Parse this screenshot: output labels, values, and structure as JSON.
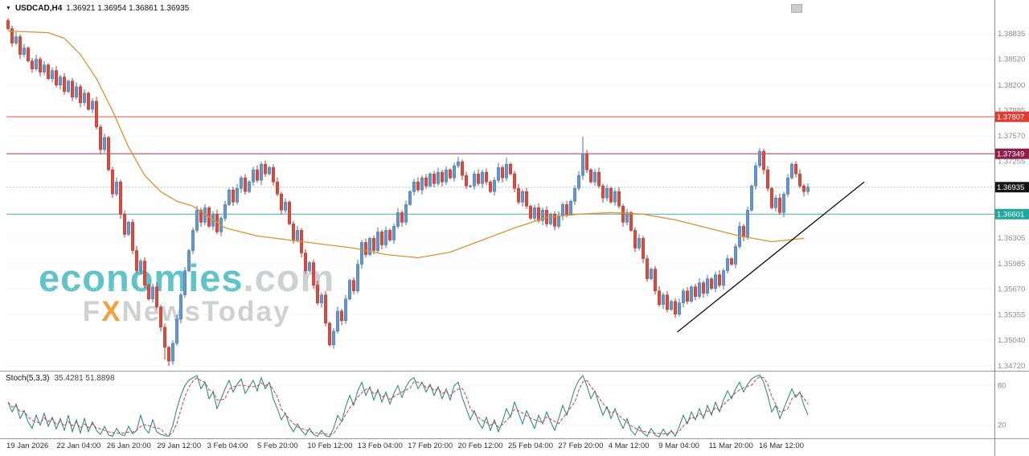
{
  "header": {
    "dropdown_icon": "▼",
    "symbol_period": "USDCAD,H4",
    "ohlc": "1.36921 1.36954 1.36861 1.36935"
  },
  "watermark": {
    "brand": "economies",
    "domain": ".com",
    "sub_pre": "F",
    "sub_x": "X",
    "sub_post": "NewsToday"
  },
  "indicator": {
    "label": "Stoch(5,3,3)",
    "values": "35.4281 51.8898"
  },
  "colors": {
    "up_fill": "#6697cf",
    "up_stroke": "#4576ad",
    "down_fill": "#da4c40",
    "down_stroke": "#b8372d",
    "ma": "#e09130",
    "trend": "#111111",
    "grid": "#e2e2e2",
    "axis_text": "#8c8c8c",
    "date_text": "#2f2f2f",
    "separator": "#9a9a9a",
    "axis_line": "#8a8a8a",
    "stoch_k": "#23837e",
    "stoch_d": "#d04040",
    "current_dash": "#c0c0c0",
    "badge_text": "#ffffff"
  },
  "chart_data": {
    "type": "candlestick",
    "symbol": "USDCAD",
    "timeframe": "H4",
    "title": "USDCAD,H4 1.36921 1.36954 1.36861 1.36935",
    "x_labels": [
      "19 Jan 2026",
      "22 Jan 04:00",
      "26 Jan 20:00",
      "29 Jan 12:00",
      "3 Feb 04:00",
      "5 Feb 20:00",
      "10 Feb 12:00",
      "13 Feb 04:00",
      "17 Feb 20:00",
      "20 Feb 12:00",
      "25 Feb 04:00",
      "27 Feb 20:00",
      "4 Mar 12:00",
      "9 Mar 04:00",
      "11 Mar 20:00",
      "16 Mar 12:00"
    ],
    "y_ticks": [
      {
        "label": "1.38835",
        "price": 1.38835
      },
      {
        "label": "1.38520",
        "price": 1.3852
      },
      {
        "label": "1.38200",
        "price": 1.382
      },
      {
        "label": "1.37885",
        "price": 1.37885
      },
      {
        "label": "1.37570",
        "price": 1.3757
      },
      {
        "label": "1.37255",
        "price": 1.37255
      },
      {
        "label": "1.36305",
        "price": 1.36305
      },
      {
        "label": "1.35985",
        "price": 1.35985
      },
      {
        "label": "1.35670",
        "price": 1.3567
      },
      {
        "label": "1.35355",
        "price": 1.35355
      },
      {
        "label": "1.35040",
        "price": 1.3504
      },
      {
        "label": "1.34720",
        "price": 1.3472
      }
    ],
    "scale": {
      "price_max": 1.39075,
      "price_min": 1.3469
    },
    "price_lines": [
      {
        "name": "resistance-1",
        "label": "1.37807",
        "price": 1.37807,
        "badge": "#e03c32",
        "line": "#e8685f"
      },
      {
        "name": "resistance-2",
        "label": "1.37349",
        "price": 1.37349,
        "badge": "#8e1f4b",
        "line": "#a34e71"
      },
      {
        "name": "support-1",
        "label": "1.36601",
        "price": 1.36601,
        "badge": "#21a69b",
        "line": "#3db3a9"
      }
    ],
    "current_price": {
      "label": "1.36935",
      "price": 1.36935,
      "badge": "#151515"
    },
    "candles": {
      "open_first": 1.39,
      "closes": [
        1.389,
        1.3872,
        1.388,
        1.3858,
        1.3866,
        1.385,
        1.384,
        1.3852,
        1.3836,
        1.3845,
        1.3828,
        1.3838,
        1.382,
        1.383,
        1.3812,
        1.3825,
        1.3805,
        1.3818,
        1.3798,
        1.381,
        1.379,
        1.38,
        1.3768,
        1.374,
        1.3755,
        1.3715,
        1.3685,
        1.37,
        1.366,
        1.3635,
        1.365,
        1.3615,
        1.359,
        1.3602,
        1.3572,
        1.3555,
        1.357,
        1.3545,
        1.352,
        1.3495,
        1.3478,
        1.35,
        1.353,
        1.356,
        1.359,
        1.3615,
        1.364,
        1.3665,
        1.365,
        1.3668,
        1.3645,
        1.366,
        1.3638,
        1.3655,
        1.3672,
        1.369,
        1.3675,
        1.3692,
        1.3705,
        1.3688,
        1.37,
        1.3715,
        1.3702,
        1.3722,
        1.371,
        1.3718,
        1.37,
        1.3685,
        1.3665,
        1.3675,
        1.3648,
        1.3628,
        1.364,
        1.3612,
        1.359,
        1.36,
        1.3572,
        1.355,
        1.356,
        1.3525,
        1.3498,
        1.3515,
        1.354,
        1.3528,
        1.3555,
        1.3578,
        1.3565,
        1.3598,
        1.3625,
        1.361,
        1.363,
        1.3615,
        1.3638,
        1.3622,
        1.364,
        1.3628,
        1.3645,
        1.3662,
        1.365,
        1.3672,
        1.3688,
        1.37,
        1.369,
        1.3705,
        1.3695,
        1.371,
        1.3698,
        1.3712,
        1.37,
        1.3715,
        1.3705,
        1.372,
        1.3725,
        1.3708,
        1.3695,
        1.3695,
        1.371,
        1.3698,
        1.3712,
        1.37,
        1.3688,
        1.3702,
        1.3718,
        1.3705,
        1.3722,
        1.371,
        1.3692,
        1.3675,
        1.3688,
        1.367,
        1.3655,
        1.3668,
        1.3652,
        1.3665,
        1.3648,
        1.366,
        1.3645,
        1.3658,
        1.3672,
        1.366,
        1.3676,
        1.3692,
        1.3708,
        1.3735,
        1.3715,
        1.37,
        1.3712,
        1.3695,
        1.368,
        1.3692,
        1.3675,
        1.3688,
        1.367,
        1.365,
        1.3662,
        1.364,
        1.3618,
        1.363,
        1.3605,
        1.358,
        1.3592,
        1.3565,
        1.3548,
        1.356,
        1.3542,
        1.3552,
        1.3536,
        1.355,
        1.3565,
        1.3552,
        1.357,
        1.3558,
        1.3575,
        1.3562,
        1.358,
        1.3568,
        1.3585,
        1.3572,
        1.359,
        1.3605,
        1.3598,
        1.362,
        1.3645,
        1.3632,
        1.3665,
        1.3695,
        1.372,
        1.3738,
        1.3715,
        1.3692,
        1.3668,
        1.368,
        1.3662,
        1.3685,
        1.3705,
        1.3722,
        1.371,
        1.3695,
        1.3688,
        1.36935
      ],
      "wick_overrides": {
        "0": {
          "high": 1.3903
        },
        "39": {
          "low": 1.348
        },
        "40": {
          "low": 1.3472
        },
        "112": {
          "high": 1.3731
        },
        "124": {
          "high": 1.373
        },
        "143": {
          "high": 1.3756
        },
        "187": {
          "high": 1.3742
        }
      }
    },
    "ma_points": [
      [
        0,
        1.3887
      ],
      [
        10,
        1.3885
      ],
      [
        14,
        1.3878
      ],
      [
        18,
        1.3858
      ],
      [
        22,
        1.3828
      ],
      [
        26,
        1.3788
      ],
      [
        30,
        1.3743
      ],
      [
        34,
        1.3708
      ],
      [
        38,
        1.3688
      ],
      [
        42,
        1.3676
      ],
      [
        46,
        1.367
      ],
      [
        54,
        1.3643
      ],
      [
        62,
        1.3633
      ],
      [
        70,
        1.3628
      ],
      [
        78,
        1.3623
      ],
      [
        86,
        1.3618
      ],
      [
        94,
        1.361
      ],
      [
        102,
        1.3606
      ],
      [
        110,
        1.3613
      ],
      [
        118,
        1.3628
      ],
      [
        126,
        1.3643
      ],
      [
        134,
        1.3656
      ],
      [
        142,
        1.366
      ],
      [
        150,
        1.3662
      ],
      [
        158,
        1.366
      ],
      [
        166,
        1.3653
      ],
      [
        174,
        1.3643
      ],
      [
        182,
        1.3633
      ],
      [
        190,
        1.3626
      ],
      [
        198,
        1.363
      ]
    ],
    "trendline": {
      "i1": 166.5,
      "p1": 1.3514,
      "i2": 213,
      "p2": 1.37
    },
    "stoch": {
      "levels": [
        80,
        20
      ],
      "d_period": 3,
      "k": [
        55,
        40,
        52,
        30,
        42,
        25,
        15,
        35,
        20,
        38,
        18,
        32,
        14,
        30,
        12,
        35,
        10,
        28,
        8,
        30,
        10,
        25,
        12,
        6,
        18,
        5,
        3,
        15,
        6,
        4,
        18,
        7,
        12,
        35,
        15,
        8,
        28,
        10,
        6,
        4,
        3,
        20,
        45,
        65,
        80,
        88,
        92,
        95,
        75,
        85,
        60,
        70,
        45,
        60,
        75,
        88,
        70,
        82,
        90,
        68,
        78,
        88,
        72,
        92,
        75,
        85,
        60,
        45,
        28,
        38,
        20,
        10,
        22,
        12,
        5,
        15,
        6,
        3,
        12,
        4,
        2,
        15,
        35,
        25,
        48,
        65,
        50,
        72,
        85,
        65,
        78,
        58,
        74,
        55,
        70,
        52,
        68,
        80,
        62,
        78,
        88,
        92,
        75,
        85,
        70,
        82,
        65,
        78,
        60,
        75,
        58,
        80,
        85,
        62,
        45,
        28,
        42,
        25,
        15,
        32,
        12,
        28,
        10,
        25,
        45,
        32,
        55,
        38,
        22,
        42,
        28,
        15,
        35,
        22,
        40,
        25,
        12,
        30,
        50,
        35,
        55,
        75,
        88,
        95,
        80,
        60,
        72,
        52,
        35,
        48,
        30,
        45,
        28,
        15,
        30,
        12,
        5,
        18,
        8,
        3,
        15,
        5,
        2,
        14,
        4,
        12,
        3,
        18,
        35,
        22,
        40,
        28,
        45,
        30,
        50,
        35,
        55,
        40,
        58,
        72,
        60,
        75,
        85,
        70,
        82,
        90,
        94,
        96,
        85,
        65,
        40,
        50,
        30,
        45,
        60,
        75,
        62,
        70.4,
        49.8413,
        35.4281
      ]
    }
  }
}
